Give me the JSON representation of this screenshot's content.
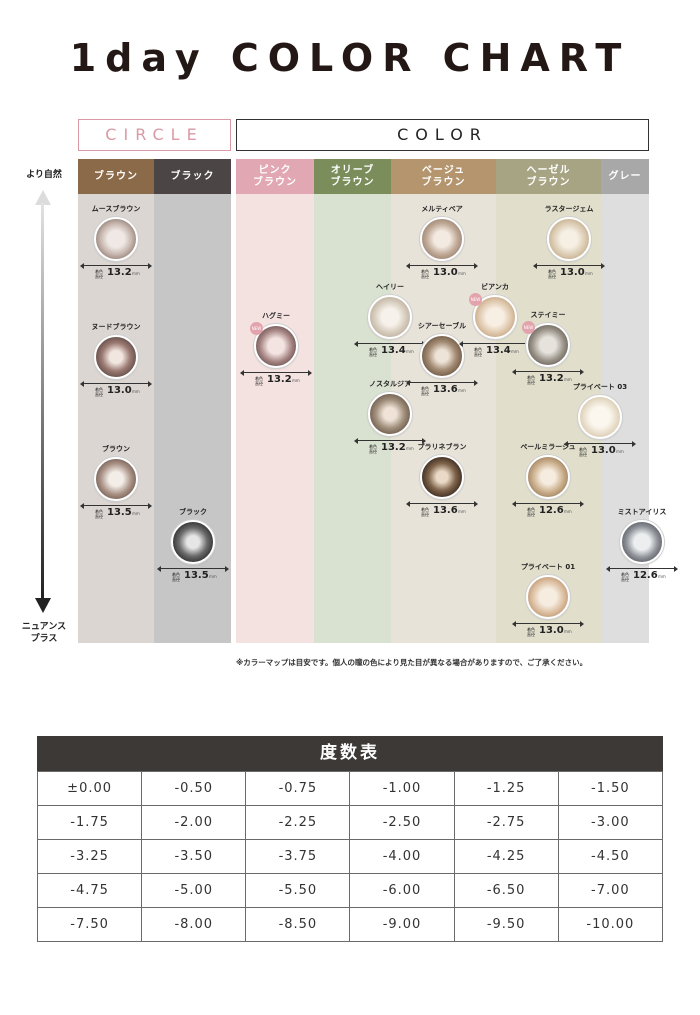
{
  "title": "1day COLOR CHART",
  "groups": {
    "circle": "CIRCLE",
    "color": "COLOR"
  },
  "axis": {
    "top_label": "より自然",
    "bottom_label": "ニュアンス\nプラス"
  },
  "columns": [
    {
      "id": "brown",
      "label": "ブラウン",
      "header_color": "#8b6a4a",
      "bg_color": "#dcd6d2"
    },
    {
      "id": "black",
      "label": "ブラック",
      "header_color": "#4b4545",
      "bg_color": "#c6c6c6"
    },
    {
      "id": "pink-brown",
      "label": "ピンク\nブラウン",
      "header_color": "#e1a7b2",
      "bg_color": "#f4e2e1"
    },
    {
      "id": "olive-brown",
      "label": "オリーブ\nブラウン",
      "header_color": "#7b8d5a",
      "bg_color": "#d9e1d0"
    },
    {
      "id": "beige-brown",
      "label": "ベージュ\nブラウン",
      "header_color": "#b4956d",
      "bg_color": "#e8e3d9"
    },
    {
      "id": "hazel-brown",
      "label": "ヘーゼル\nブラウン",
      "header_color": "#a6a482",
      "bg_color": "#e1dfcc"
    },
    {
      "id": "gray",
      "label": "グレー",
      "header_color": "#a8a8a8",
      "bg_color": "#dedede"
    }
  ],
  "diameter_label": "着色\n直径",
  "unit": "mm",
  "new_label": "NEW",
  "lenses": [
    {
      "name": "ムースブラウン",
      "diameter": "13.2",
      "new": false
    },
    {
      "name": "ヌードブラウン",
      "diameter": "13.0",
      "new": false
    },
    {
      "name": "ブラウン",
      "diameter": "13.5",
      "new": false
    },
    {
      "name": "ブラック",
      "diameter": "13.5",
      "new": false
    },
    {
      "name": "ハグミー",
      "diameter": "13.2",
      "new": true
    },
    {
      "name": "ヘイリー",
      "diameter": "13.4",
      "new": false
    },
    {
      "name": "ノスタルジア",
      "diameter": "13.2",
      "new": false
    },
    {
      "name": "メルティベア",
      "diameter": "13.0",
      "new": false
    },
    {
      "name": "シアーセーブル",
      "diameter": "13.6",
      "new": false
    },
    {
      "name": "プラリネブラン",
      "diameter": "13.6",
      "new": false
    },
    {
      "name": "ビアンカ",
      "diameter": "13.4",
      "new": true
    },
    {
      "name": "ラスタージェム",
      "diameter": "13.0",
      "new": false
    },
    {
      "name": "ステイミー",
      "diameter": "13.2",
      "new": true
    },
    {
      "name": "ペールミラージュ",
      "diameter": "12.6",
      "new": false
    },
    {
      "name": "プライベート 01",
      "diameter": "13.0",
      "new": false
    },
    {
      "name": "プライベート 03",
      "diameter": "13.0",
      "new": false
    },
    {
      "name": "ミストアイリス",
      "diameter": "12.6",
      "new": false
    }
  ],
  "note": "※カラーマップは目安です。個人の瞳の色により見た目が異なる場合がありますので、ご了承ください。",
  "power_table": {
    "title": "度数表",
    "rows": [
      [
        "±0.00",
        "-0.50",
        "-0.75",
        "-1.00",
        "-1.25",
        "-1.50"
      ],
      [
        "-1.75",
        "-2.00",
        "-2.25",
        "-2.50",
        "-2.75",
        "-3.00"
      ],
      [
        "-3.25",
        "-3.50",
        "-3.75",
        "-4.00",
        "-4.25",
        "-4.50"
      ],
      [
        "-4.75",
        "-5.00",
        "-5.50",
        "-6.00",
        "-6.50",
        "-7.00"
      ],
      [
        "-7.50",
        "-8.00",
        "-8.50",
        "-9.00",
        "-9.50",
        "-10.00"
      ]
    ]
  }
}
